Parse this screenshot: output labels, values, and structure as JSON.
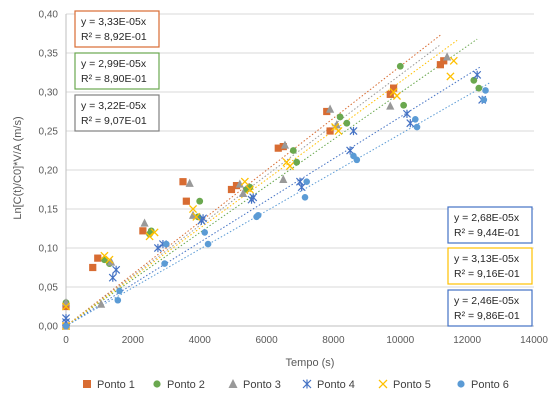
{
  "chart_data": {
    "type": "scatter",
    "title": "",
    "xlabel": "Tempo  (s)",
    "ylabel": "Ln[C(t)/C0]*V/A  (m/s)",
    "xlim": [
      0,
      14000
    ],
    "ylim": [
      0,
      0.4
    ],
    "xticks": [
      0,
      2000,
      4000,
      6000,
      8000,
      10000,
      12000,
      14000
    ],
    "xtick_labels": [
      "0",
      "2000",
      "4000",
      "6000",
      "8000",
      "10000",
      "12000",
      "14000"
    ],
    "yticks": [
      0,
      0.05,
      0.1,
      0.15,
      0.2,
      0.25,
      0.3,
      0.35,
      0.4
    ],
    "ytick_labels": [
      "0,00",
      "0,05",
      "0,10",
      "0,15",
      "0,20",
      "0,25",
      "0,30",
      "0,35",
      "0,40"
    ],
    "grid": "horizontal",
    "legend_position": "bottom",
    "series": [
      {
        "name": "Ponto 1",
        "color": "#d86c32",
        "marker": "square",
        "points": [
          [
            0,
            0.025
          ],
          [
            0,
            0.0
          ],
          [
            800,
            0.075
          ],
          [
            950,
            0.087
          ],
          [
            2300,
            0.122
          ],
          [
            3500,
            0.185
          ],
          [
            3600,
            0.16
          ],
          [
            4950,
            0.175
          ],
          [
            5100,
            0.18
          ],
          [
            6350,
            0.228
          ],
          [
            6500,
            0.23
          ],
          [
            7800,
            0.275
          ],
          [
            7900,
            0.25
          ],
          [
            9700,
            0.297
          ],
          [
            9800,
            0.305
          ],
          [
            11200,
            0.335
          ],
          [
            11300,
            0.34
          ]
        ]
      },
      {
        "name": "Ponto 2",
        "color": "#6aa84f",
        "marker": "circle",
        "points": [
          [
            0,
            0.03
          ],
          [
            0,
            0.0
          ],
          [
            1150,
            0.085
          ],
          [
            1300,
            0.08
          ],
          [
            2500,
            0.118
          ],
          [
            2550,
            0.122
          ],
          [
            3950,
            0.14
          ],
          [
            4000,
            0.16
          ],
          [
            5400,
            0.175
          ],
          [
            5500,
            0.178
          ],
          [
            6800,
            0.225
          ],
          [
            6900,
            0.21
          ],
          [
            8200,
            0.268
          ],
          [
            8400,
            0.26
          ],
          [
            10000,
            0.333
          ],
          [
            10100,
            0.283
          ],
          [
            12200,
            0.315
          ],
          [
            12350,
            0.305
          ]
        ]
      },
      {
        "name": "Ponto 3",
        "color": "#999999",
        "marker": "triangle",
        "points": [
          [
            0,
            0.03
          ],
          [
            0,
            0.0
          ],
          [
            1050,
            0.028
          ],
          [
            1350,
            0.082
          ],
          [
            2350,
            0.132
          ],
          [
            3700,
            0.183
          ],
          [
            3800,
            0.142
          ],
          [
            5200,
            0.182
          ],
          [
            5300,
            0.17
          ],
          [
            6500,
            0.188
          ],
          [
            6550,
            0.232
          ],
          [
            7900,
            0.278
          ],
          [
            8100,
            0.258
          ],
          [
            9700,
            0.282
          ],
          [
            11400,
            0.345
          ]
        ]
      },
      {
        "name": "Ponto 4",
        "color": "#4472c4",
        "marker": "asterisk",
        "points": [
          [
            0,
            0.005
          ],
          [
            0,
            0.01
          ],
          [
            1400,
            0.062
          ],
          [
            1500,
            0.072
          ],
          [
            2750,
            0.1
          ],
          [
            2900,
            0.105
          ],
          [
            4050,
            0.135
          ],
          [
            4100,
            0.138
          ],
          [
            5550,
            0.162
          ],
          [
            5600,
            0.165
          ],
          [
            7000,
            0.185
          ],
          [
            7050,
            0.178
          ],
          [
            8500,
            0.225
          ],
          [
            8600,
            0.25
          ],
          [
            10200,
            0.272
          ],
          [
            10300,
            0.26
          ],
          [
            12300,
            0.322
          ],
          [
            12450,
            0.29
          ]
        ]
      },
      {
        "name": "Ponto 5",
        "color": "#ffc000",
        "marker": "x",
        "points": [
          [
            0,
            0.025
          ],
          [
            0,
            0.0
          ],
          [
            1150,
            0.09
          ],
          [
            1300,
            0.085
          ],
          [
            2500,
            0.115
          ],
          [
            2650,
            0.12
          ],
          [
            3800,
            0.15
          ],
          [
            3900,
            0.14
          ],
          [
            5350,
            0.185
          ],
          [
            5500,
            0.175
          ],
          [
            6600,
            0.21
          ],
          [
            6700,
            0.205
          ],
          [
            8050,
            0.255
          ],
          [
            8150,
            0.25
          ],
          [
            9800,
            0.3
          ],
          [
            9900,
            0.295
          ],
          [
            11500,
            0.32
          ],
          [
            11600,
            0.34
          ]
        ]
      },
      {
        "name": "Ponto 6",
        "color": "#5b9bd5",
        "marker": "dot",
        "points": [
          [
            0,
            0.0
          ],
          [
            1550,
            0.033
          ],
          [
            1600,
            0.045
          ],
          [
            2950,
            0.08
          ],
          [
            3000,
            0.105
          ],
          [
            4250,
            0.105
          ],
          [
            4150,
            0.12
          ],
          [
            5700,
            0.14
          ],
          [
            5750,
            0.142
          ],
          [
            7150,
            0.165
          ],
          [
            7200,
            0.185
          ],
          [
            8700,
            0.213
          ],
          [
            8600,
            0.218
          ],
          [
            10450,
            0.265
          ],
          [
            10500,
            0.255
          ],
          [
            12550,
            0.302
          ],
          [
            12500,
            0.29
          ]
        ]
      }
    ],
    "trendlines": [
      {
        "series": "Ponto 1",
        "slope": 3.33e-05,
        "x_end": 11200,
        "equation": "y = 3,33E-05x",
        "r2": "R² = 8,92E-01",
        "box_color": "#d86c32"
      },
      {
        "series": "Ponto 2",
        "slope": 2.99e-05,
        "x_end": 12300,
        "equation": "y = 2,99E-05x",
        "r2": "R² = 8,90E-01",
        "box_color": "#6aa84f"
      },
      {
        "series": "Ponto 3",
        "slope": 3.22e-05,
        "x_end": 11200,
        "equation": "y = 3,22E-05x",
        "r2": "R² = 9,07E-01",
        "box_color": "#808080"
      },
      {
        "series": "Ponto 4",
        "slope": 2.68e-05,
        "x_end": 12400,
        "equation": "y = 2,68E-05x",
        "r2": "R² = 9,44E-01",
        "box_color": "#4472c4"
      },
      {
        "series": "Ponto 5",
        "slope": 3.13e-05,
        "x_end": 11700,
        "equation": "y = 3,13E-05x",
        "r2": "R² = 9,16E-01",
        "box_color": "#ffc000"
      },
      {
        "series": "Ponto 6",
        "slope": 2.46e-05,
        "x_end": 12700,
        "equation": "y = 2,46E-05x",
        "r2": "R² = 9,86E-01",
        "box_color": "#4472c4"
      }
    ]
  }
}
